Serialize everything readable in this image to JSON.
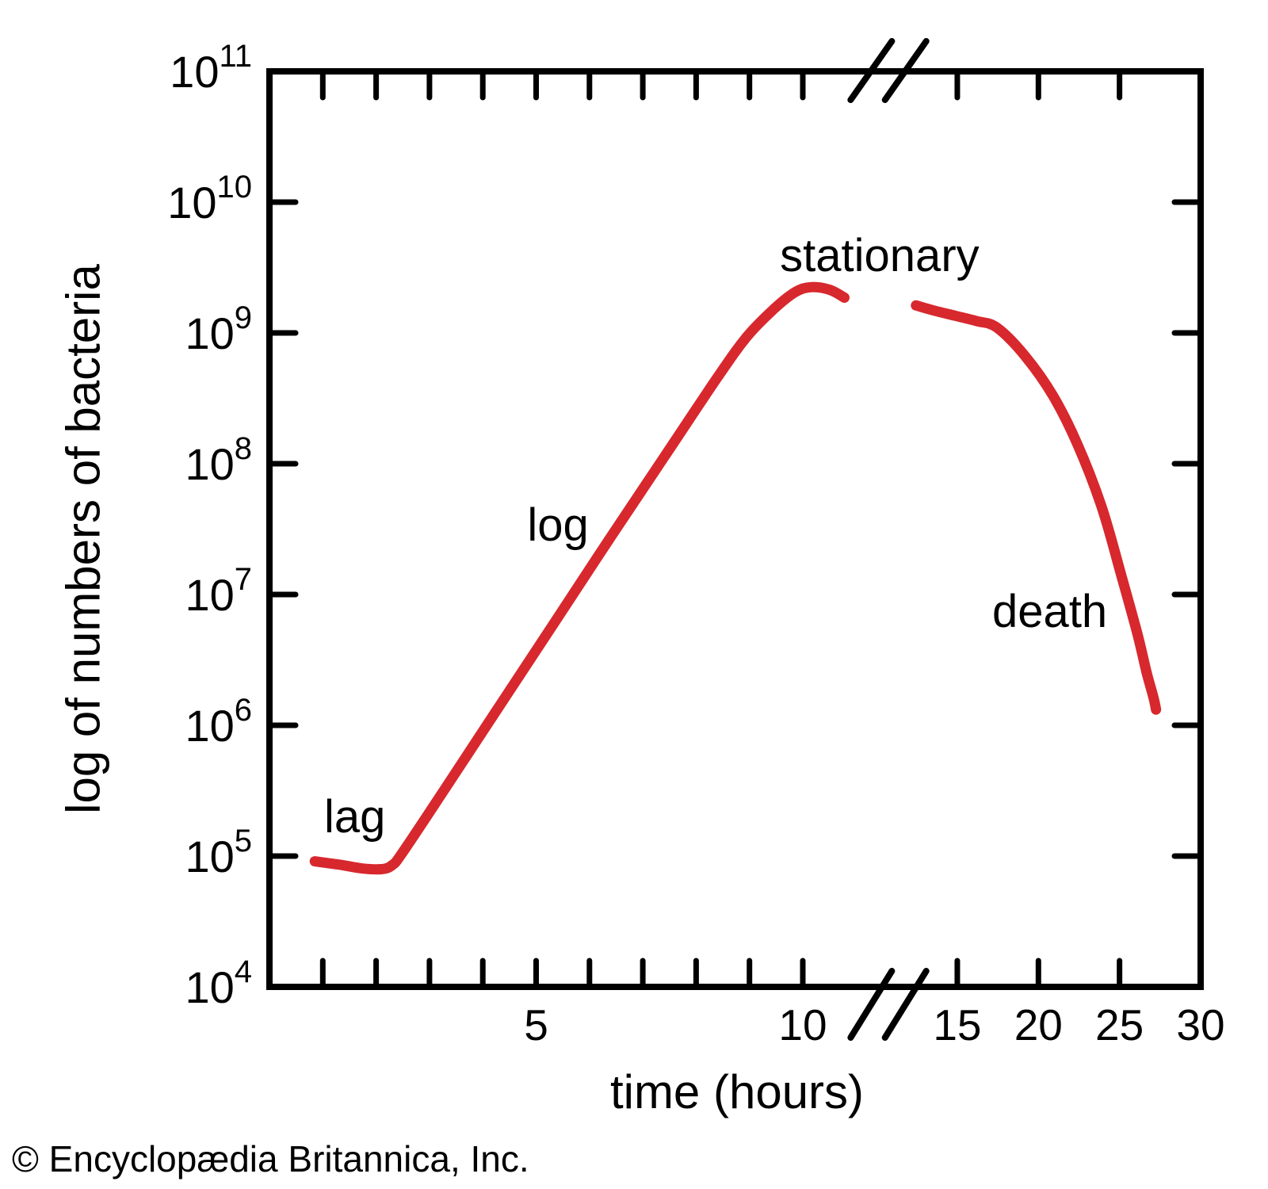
{
  "chart_data": {
    "type": "line",
    "xlabel": "time (hours)",
    "ylabel": "log of numbers of bacteria",
    "y_scale": "log10",
    "grid": false,
    "legend": "none",
    "y_axis": {
      "tick_label_base": "10",
      "exponents": [
        11,
        10,
        9,
        8,
        7,
        6,
        5,
        4
      ],
      "range_exponents": [
        4,
        11
      ],
      "minor_tick_exponents": [
        5,
        6,
        7,
        8,
        9,
        10
      ]
    },
    "x_axis": {
      "range_hours": [
        0,
        30
      ],
      "minor_tick_hours_before_break": [
        1,
        2,
        3,
        4,
        5,
        6,
        7,
        8,
        9,
        10
      ],
      "labeled_ticks_before_break": [
        5,
        10
      ],
      "labeled_ticks_after_break": [
        15,
        20,
        25,
        30
      ],
      "break_between_hours": [
        11,
        13
      ],
      "break_style": "double-slash"
    },
    "colors": {
      "curve": "#d7282e",
      "axis": "#000000",
      "text": "#000000",
      "background": "#ffffff"
    },
    "series": [
      {
        "name": "growth curve segment 1 (lag, log, early stationary)",
        "points_t_log10N": [
          [
            0.85,
            4.96
          ],
          [
            1.3,
            4.935
          ],
          [
            1.75,
            4.905
          ],
          [
            2.1,
            4.9
          ],
          [
            2.3,
            4.93
          ],
          [
            2.5,
            5.03
          ],
          [
            3.3,
            5.52
          ],
          [
            4.3,
            6.14
          ],
          [
            5.4,
            6.82
          ],
          [
            6.4,
            7.44
          ],
          [
            7.4,
            8.05
          ],
          [
            8.4,
            8.66
          ],
          [
            8.95,
            8.97
          ],
          [
            9.45,
            9.18
          ],
          [
            9.85,
            9.31
          ],
          [
            10.15,
            9.35
          ],
          [
            10.5,
            9.33
          ],
          [
            10.78,
            9.27
          ]
        ]
      },
      {
        "name": "growth curve segment 2 (late stationary, death)",
        "points_t_log10N": [
          [
            12.45,
            9.21
          ],
          [
            13.6,
            9.17
          ],
          [
            14.9,
            9.13
          ],
          [
            16.2,
            9.09
          ],
          [
            17.45,
            9.04
          ],
          [
            19.2,
            8.82
          ],
          [
            20.9,
            8.52
          ],
          [
            22.4,
            8.15
          ],
          [
            23.9,
            7.67
          ],
          [
            25.1,
            7.15
          ],
          [
            26.1,
            6.7
          ],
          [
            26.7,
            6.39
          ],
          [
            27.1,
            6.21
          ],
          [
            27.25,
            6.12
          ]
        ]
      }
    ],
    "phase_annotations": [
      {
        "text": "lag",
        "t": 1.6,
        "log10N": 5.3
      },
      {
        "text": "log",
        "t": 5.41,
        "log10N": 7.53
      },
      {
        "text": "stationary",
        "t": 11.44,
        "log10N": 9.59
      },
      {
        "text": "death",
        "t": 20.7,
        "log10N": 6.87
      }
    ]
  },
  "footer": {
    "copyright": "© Encyclopædia Britannica, Inc."
  }
}
